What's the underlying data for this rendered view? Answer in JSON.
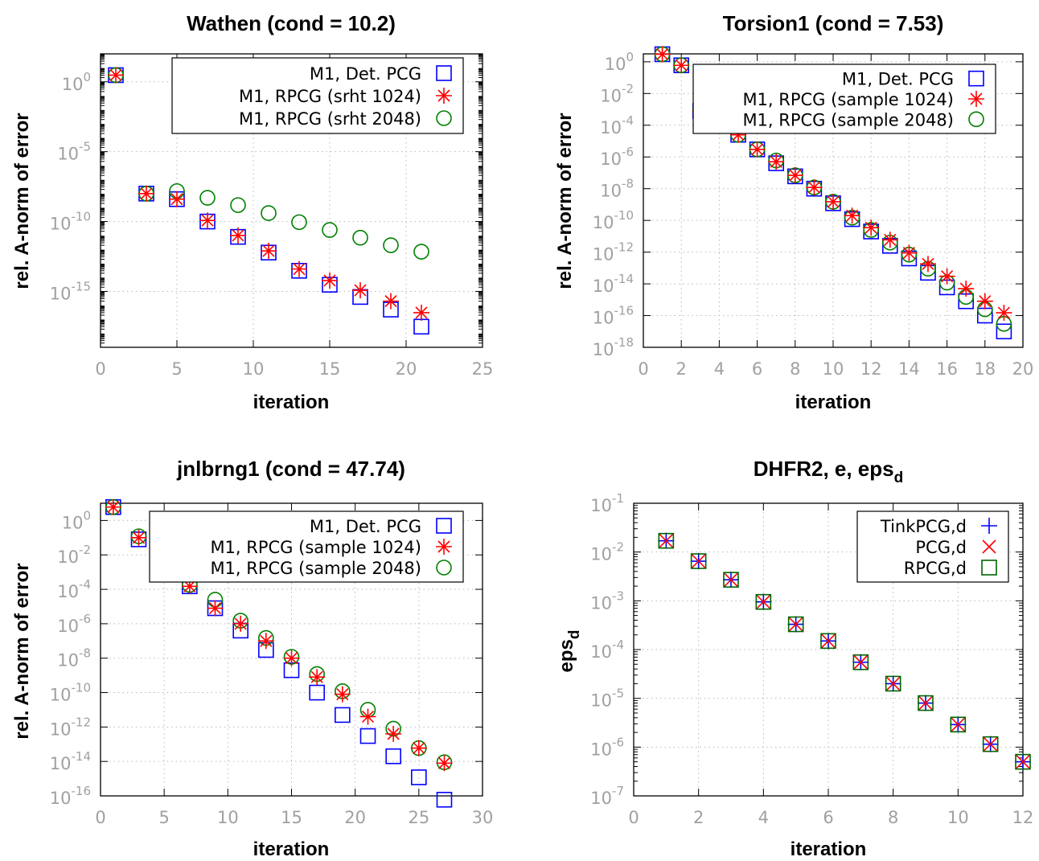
{
  "chart_data": [
    {
      "type": "scatter",
      "title": "Wathen (cond = 10.2)",
      "xlabel": "iteration",
      "ylabel": "rel. A-norm of error",
      "xlim": [
        0,
        25
      ],
      "xticks": [
        0,
        5,
        10,
        15,
        20,
        25
      ],
      "yscale": "log",
      "ylog": [
        -19,
        2
      ],
      "ytick_exps": [
        -15,
        -10,
        -5,
        0
      ],
      "minor_ticks": true,
      "grid": true,
      "legend_position": "top-right",
      "series": [
        {
          "name": "M1, Det. PCG",
          "marker": "square",
          "color": "#0000ff",
          "x": [
            1,
            3,
            5,
            7,
            9,
            11,
            13,
            15,
            17,
            19,
            21
          ],
          "y": [
            3.0,
            1e-08,
            4e-09,
            1e-10,
            8e-12,
            6e-13,
            3e-14,
            3e-15,
            4e-16,
            5e-17,
            3e-18
          ]
        },
        {
          "name": "M1, RPCG (srht 1024)",
          "marker": "star",
          "color": "#ff0000",
          "x": [
            1,
            3,
            5,
            7,
            9,
            11,
            13,
            15,
            17,
            19,
            21
          ],
          "y": [
            3.0,
            1e-08,
            4e-09,
            1.2e-10,
            1e-11,
            8e-13,
            4e-14,
            6e-15,
            1.2e-15,
            2e-16,
            3e-17
          ]
        },
        {
          "name": "M1, RPCG (srht 2048)",
          "marker": "circle",
          "color": "#008000",
          "x": [
            1,
            3,
            5,
            7,
            9,
            11,
            13,
            15,
            17,
            19,
            21
          ],
          "y": [
            3.0,
            1e-08,
            1.5e-08,
            5e-09,
            1.5e-09,
            4e-10,
            9e-11,
            2.5e-11,
            7e-12,
            2e-12,
            7e-13
          ]
        }
      ]
    },
    {
      "type": "scatter",
      "title": "Torsion1 (cond = 7.53)",
      "xlabel": "iteration",
      "ylabel": "rel. A-norm of error",
      "xlim": [
        0,
        20
      ],
      "xticks": [
        0,
        2,
        4,
        6,
        8,
        10,
        12,
        14,
        16,
        18,
        20
      ],
      "yscale": "log",
      "ylog": [
        -18,
        0.5
      ],
      "ytick_exps": [
        -18,
        -16,
        -14,
        -12,
        -10,
        -8,
        -6,
        -4,
        -2,
        0
      ],
      "minor_ticks": false,
      "grid": true,
      "legend_position": "top-right",
      "series": [
        {
          "name": "M1, Det. PCG",
          "marker": "square",
          "color": "#0000ff",
          "x": [
            1,
            2,
            3,
            4,
            5,
            6,
            7,
            8,
            9,
            10,
            11,
            12,
            13,
            14,
            15,
            16,
            17,
            18,
            19
          ],
          "y": [
            3.0,
            0.6,
            0.0008,
            0.00015,
            2.5e-05,
            3e-06,
            4e-07,
            6e-08,
            1e-08,
            1.2e-09,
            1.2e-10,
            2e-11,
            2.5e-12,
            4e-13,
            5e-14,
            6e-15,
            8e-16,
            1e-16,
            1e-17
          ]
        },
        {
          "name": "M1, RPCG (sample 1024)",
          "marker": "star",
          "color": "#ff0000",
          "x": [
            1,
            2,
            3,
            4,
            5,
            6,
            7,
            8,
            9,
            10,
            11,
            12,
            13,
            14,
            15,
            16,
            17,
            18,
            19
          ],
          "y": [
            3.0,
            0.6,
            0.0008,
            0.00015,
            2.5e-05,
            3e-06,
            5e-07,
            7e-08,
            1.2e-08,
            1.5e-09,
            2e-10,
            3.5e-11,
            6e-12,
            9e-13,
            1.8e-13,
            3e-14,
            5e-15,
            8e-16,
            1.5e-16
          ]
        },
        {
          "name": "M1, RPCG (sample 2048)",
          "marker": "circle",
          "color": "#008000",
          "x": [
            1,
            2,
            3,
            4,
            5,
            6,
            7,
            8,
            9,
            10,
            11,
            12,
            13,
            14,
            15,
            16,
            17,
            18,
            19
          ],
          "y": [
            3.0,
            0.6,
            0.001,
            0.00015,
            2.5e-05,
            3e-06,
            6e-07,
            7e-08,
            1.2e-08,
            1.5e-09,
            1.5e-10,
            2.5e-11,
            4e-12,
            7e-13,
            9e-14,
            1.2e-14,
            1.5e-15,
            2.5e-16,
            3e-17
          ]
        }
      ]
    },
    {
      "type": "scatter",
      "title": "jnlbrng1 (cond = 47.74)",
      "xlabel": "iteration",
      "ylabel": "rel. A-norm of error",
      "xlim": [
        0,
        30
      ],
      "xticks": [
        0,
        5,
        10,
        15,
        20,
        25,
        30
      ],
      "yscale": "log",
      "ylog": [
        -16,
        1
      ],
      "ytick_exps": [
        -16,
        -14,
        -12,
        -10,
        -8,
        -6,
        -4,
        -2,
        0
      ],
      "minor_ticks": false,
      "grid": true,
      "legend_position": "top-right",
      "series": [
        {
          "name": "M1, Det. PCG",
          "marker": "square",
          "color": "#0000ff",
          "x": [
            1,
            3,
            5,
            7,
            9,
            11,
            13,
            15,
            17,
            19,
            21,
            23,
            25,
            27
          ],
          "y": [
            6.0,
            0.08,
            0.004,
            0.00015,
            8e-06,
            4e-07,
            3e-08,
            2e-09,
            1e-10,
            5e-12,
            3e-13,
            2e-14,
            1.2e-15,
            6e-17
          ]
        },
        {
          "name": "M1, RPCG (sample 1024)",
          "marker": "star",
          "color": "#ff0000",
          "x": [
            1,
            3,
            5,
            7,
            9,
            11,
            13,
            15,
            17,
            19,
            21,
            23,
            25,
            27
          ],
          "y": [
            6.0,
            0.1,
            0.02,
            0.00015,
            8e-06,
            1e-06,
            1e-07,
            1e-08,
            8e-10,
            8e-11,
            4e-12,
            4e-13,
            6e-14,
            8e-15
          ]
        },
        {
          "name": "M1, RPCG (sample 2048)",
          "marker": "circle",
          "color": "#008000",
          "x": [
            1,
            3,
            5,
            7,
            9,
            11,
            13,
            15,
            17,
            19,
            21,
            23,
            25,
            27
          ],
          "y": [
            6.0,
            0.12,
            0.02,
            0.00018,
            2.5e-05,
            1.5e-06,
            1.5e-07,
            1.2e-08,
            1.2e-09,
            1.2e-10,
            1e-11,
            8e-13,
            6e-14,
            9e-15
          ]
        }
      ]
    },
    {
      "type": "scatter",
      "title": "DHFR2, e, eps",
      "title_sub": "d",
      "xlabel": "iteration",
      "ylabel": "eps",
      "ylabel_sub": "d",
      "xlim": [
        0,
        12
      ],
      "xticks": [
        0,
        2,
        4,
        6,
        8,
        10,
        12
      ],
      "yscale": "log",
      "ylog": [
        -7,
        -1
      ],
      "ytick_exps": [
        -7,
        -6,
        -5,
        -4,
        -3,
        -2,
        -1
      ],
      "minor_ticks": true,
      "grid": true,
      "legend_position": "top-right",
      "series": [
        {
          "name": "TinkPCG,d",
          "marker": "plus",
          "color": "#0000ff",
          "x": [
            1,
            2,
            3,
            4,
            5,
            6,
            7,
            8,
            9,
            10,
            11,
            12
          ],
          "y": [
            0.017,
            0.0065,
            0.0027,
            0.00095,
            0.00033,
            0.00015,
            5.5e-05,
            2e-05,
            8e-06,
            2.9e-06,
            1.15e-06,
            5e-07
          ]
        },
        {
          "name": "PCG,d",
          "marker": "cross",
          "color": "#ff0000",
          "x": [
            1,
            2,
            3,
            4,
            5,
            6,
            7,
            8,
            9,
            10,
            11,
            12
          ],
          "y": [
            0.017,
            0.0065,
            0.0027,
            0.00095,
            0.00033,
            0.00015,
            5.5e-05,
            2e-05,
            8e-06,
            2.9e-06,
            1.15e-06,
            5e-07
          ]
        },
        {
          "name": "RPCG,d",
          "marker": "square",
          "color": "#006400",
          "x": [
            1,
            2,
            3,
            4,
            5,
            6,
            7,
            8,
            9,
            10,
            11,
            12
          ],
          "y": [
            0.017,
            0.0065,
            0.0027,
            0.00095,
            0.00033,
            0.00015,
            5.5e-05,
            2e-05,
            8e-06,
            2.9e-06,
            1.15e-06,
            5e-07
          ]
        }
      ]
    }
  ]
}
